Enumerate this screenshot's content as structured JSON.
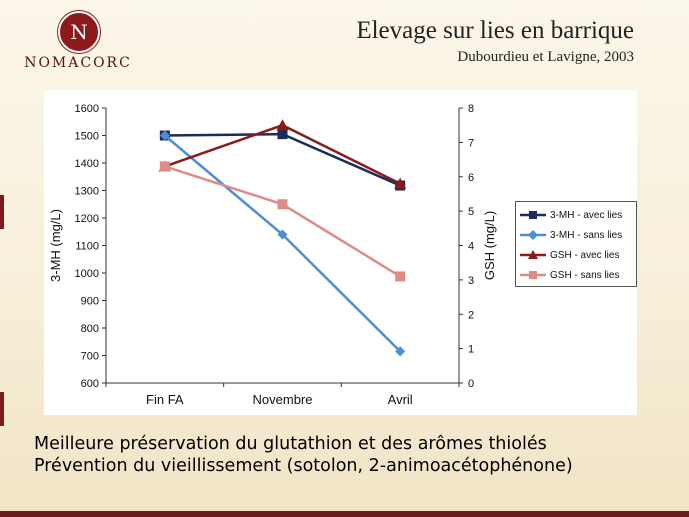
{
  "header": {
    "logo_letter": "N",
    "logo_text": "NOMACORC",
    "title": "Elevage sur lies en barrique",
    "subtitle": "Dubourdieu et Lavigne, 2003"
  },
  "chart_data": {
    "type": "line",
    "categories": [
      "Fin FA",
      "Novembre",
      "Avril"
    ],
    "y_left": {
      "label": "3-MH (mg/L)",
      "range": [
        600,
        1600
      ],
      "ticks": [
        600,
        700,
        800,
        900,
        1000,
        1100,
        1200,
        1300,
        1400,
        1500,
        1600
      ]
    },
    "y_right": {
      "label": "GSH (mg/L)",
      "range": [
        0,
        8
      ],
      "ticks": [
        0,
        1,
        2,
        3,
        4,
        5,
        6,
        7,
        8
      ]
    },
    "series": [
      {
        "name": "3-MH - avec lies",
        "axis": "left",
        "color": "#1a2d5a",
        "marker": "square",
        "values": [
          1500,
          1505,
          1318
        ]
      },
      {
        "name": "3-MH - sans lies",
        "axis": "left",
        "color": "#4a8fd6",
        "marker": "diamond",
        "values": [
          1500,
          1140,
          715
        ]
      },
      {
        "name": "GSH - avec lies",
        "axis": "right",
        "color": "#8b1a1a",
        "marker": "triangle",
        "values": [
          6.3,
          7.5,
          5.8
        ]
      },
      {
        "name": "GSH - sans lies",
        "axis": "right",
        "color": "#e08a86",
        "marker": "square",
        "values": [
          6.3,
          5.2,
          3.1
        ]
      }
    ],
    "grid": false,
    "legend_position": "right"
  },
  "captions": {
    "line1": "Meilleure préservation du glutathion et des arômes thiolés",
    "line2": "Prévention du vieillissement (sotolon, 2-animoacétophénone)"
  }
}
